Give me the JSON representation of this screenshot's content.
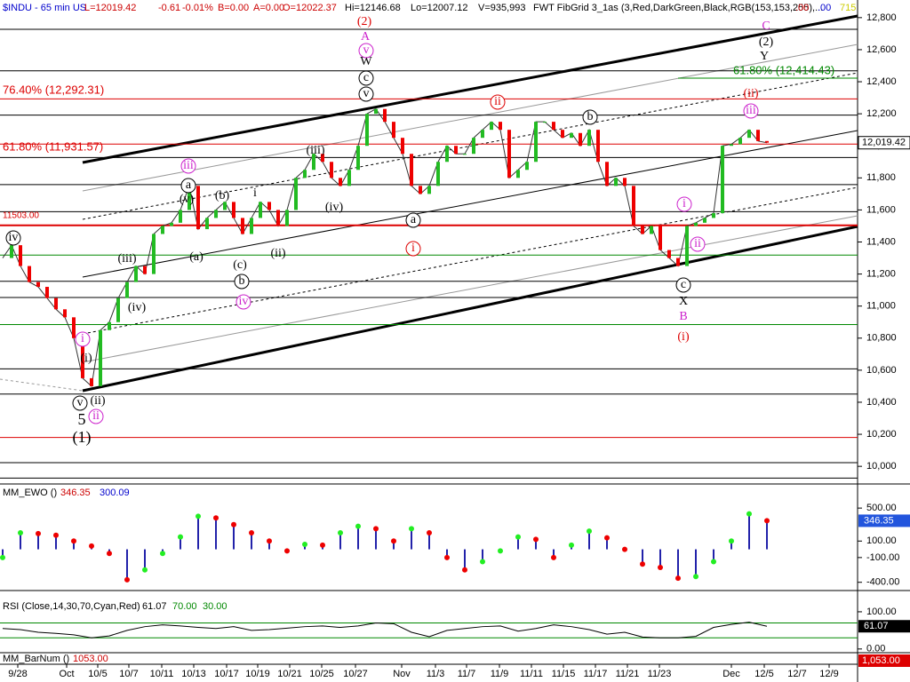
{
  "chart_data": {
    "type": "line",
    "header": {
      "symbol": "$INDU - 65 min US",
      "last": "L=12019.42",
      "change": "-0.61",
      "change_pct": "-0.01%",
      "bid": "B=0.00",
      "ask": "A=0.00",
      "open": "O=12022.37",
      "high": "Hi=12146.68",
      "low": "Lo=12007.12",
      "volume": "V=935,993",
      "study": "FWT FibGrid 3_1as (3,Red,DarkGreen,Black,RGB(153,153,255),...",
      "extra1": ".00",
      "extra2": ".00",
      "extra3": "715"
    },
    "closes": [
      11300,
      11380,
      11250,
      11150,
      11120,
      11050,
      10980,
      10930,
      10800,
      10550,
      10500,
      10850,
      10900,
      11050,
      11150,
      11250,
      11200,
      11450,
      11500,
      11520,
      11600,
      11750,
      11480,
      11550,
      11600,
      11650,
      11550,
      11450,
      11550,
      11650,
      11600,
      11500,
      11600,
      11800,
      11850,
      11950,
      11900,
      11800,
      11750,
      11850,
      12000,
      12200,
      12230,
      12150,
      12050,
      11950,
      11750,
      11700,
      11750,
      11900,
      12000,
      11950,
      11950,
      12050,
      12100,
      12150,
      12100,
      11800,
      11850,
      11900,
      12150,
      12150,
      12100,
      12050,
      12080,
      12000,
      12100,
      11900,
      11750,
      11800,
      11750,
      11500,
      11450,
      11500,
      11350,
      11300,
      11250,
      11500,
      11520,
      11550,
      11580,
      12000,
      12010,
      12050,
      12100,
      12030,
      12019.42
    ],
    "up_color": "#22bb22",
    "down_color": "#ee0000",
    "ylim": [
      9890,
      12910
    ],
    "yticks": [
      {
        "value": 12800,
        "label": "12,800"
      },
      {
        "value": 12600,
        "label": "12,600"
      },
      {
        "value": 12400,
        "label": "12,400"
      },
      {
        "value": 12200,
        "label": "12,200"
      },
      {
        "value": 12000,
        "label": "12,000"
      },
      {
        "value": 11800,
        "label": "11,800"
      },
      {
        "value": 11600,
        "label": "11,600"
      },
      {
        "value": 11400,
        "label": "11,400"
      },
      {
        "value": 11200,
        "label": "11,200"
      },
      {
        "value": 11000,
        "label": "11,000"
      },
      {
        "value": 10800,
        "label": "10,800"
      },
      {
        "value": 10600,
        "label": "10,600"
      },
      {
        "value": 10400,
        "label": "10,400"
      },
      {
        "value": 10200,
        "label": "10,200"
      },
      {
        "value": 10000,
        "label": "10,000"
      }
    ],
    "last_price": {
      "value": 12019.42,
      "label": "12,019.42"
    },
    "fib_levels": [
      {
        "value": 12727,
        "color": "#000000"
      },
      {
        "value": 12468,
        "color": "#000000"
      },
      {
        "value": 12293,
        "color": "#dd0000"
      },
      {
        "value": 12192,
        "color": "#000000"
      },
      {
        "value": 12011,
        "color": "#dd0000"
      },
      {
        "value": 11927,
        "color": "#000000"
      },
      {
        "value": 11758,
        "color": "#000000"
      },
      {
        "value": 11589,
        "color": "#000000"
      },
      {
        "value": 11504,
        "color": "#dd0000"
      },
      {
        "value": 11318,
        "color": "#008800"
      },
      {
        "value": 11155,
        "color": "#000000"
      },
      {
        "value": 11054,
        "color": "#000000"
      },
      {
        "value": 10885,
        "color": "#008800"
      },
      {
        "value": 10608,
        "color": "#000000"
      },
      {
        "value": 10451,
        "color": "#000000"
      },
      {
        "value": 10180,
        "color": "#dd0000"
      },
      {
        "value": 10023,
        "color": "#000000"
      },
      {
        "value": 9927,
        "color": "#000000"
      }
    ],
    "fib_labels": [
      {
        "text": "76.40% (12,292.31)",
        "color": "#dd0000"
      },
      {
        "text": "61.80% (11,931.57)",
        "color": "#dd0000"
      },
      {
        "text": "11503.00",
        "color": "#dd0000"
      },
      {
        "text": "61.80% (12,414.43)",
        "color": "#008800"
      }
    ],
    "waves": [
      {
        "text": "(2)",
        "color": "#dd0000"
      },
      {
        "text": "A",
        "color": "#cc22cc"
      },
      {
        "text": "v",
        "color": "#cc22cc"
      },
      {
        "text": "W",
        "color": "#000000"
      },
      {
        "text": "c",
        "color": "#000000"
      },
      {
        "text": "v",
        "color": "#000000"
      },
      {
        "text": "ii",
        "color": "#dd0000"
      },
      {
        "text": "b",
        "color": "#000000"
      },
      {
        "text": "(ii)",
        "color": "#dd0000"
      },
      {
        "text": "iii",
        "color": "#cc22cc"
      },
      {
        "text": "C",
        "color": "#cc22cc"
      },
      {
        "text": "(2)",
        "color": "#000000"
      },
      {
        "text": "Y",
        "color": "#000000"
      },
      {
        "text": "(iii)",
        "color": "#000000"
      },
      {
        "text": "iii",
        "color": "#cc22cc"
      },
      {
        "text": "a",
        "color": "#000000"
      },
      {
        "text": "(v)",
        "color": "#000000"
      },
      {
        "text": "(b)",
        "color": "#000000"
      },
      {
        "text": "i",
        "color": "#000000"
      },
      {
        "text": "(iv)",
        "color": "#000000"
      },
      {
        "text": "a",
        "color": "#000000"
      },
      {
        "text": "i",
        "color": "#dd0000"
      },
      {
        "text": "(iii)",
        "color": "#000000"
      },
      {
        "text": "(a)",
        "color": "#000000"
      },
      {
        "text": "(c)",
        "color": "#000000"
      },
      {
        "text": "(ii)",
        "color": "#000000"
      },
      {
        "text": "b",
        "color": "#000000"
      },
      {
        "text": "iv",
        "color": "#cc22cc"
      },
      {
        "text": "(iv)",
        "color": "#000000"
      },
      {
        "text": "iv",
        "color": "#000000"
      },
      {
        "text": "i",
        "color": "#cc22cc"
      },
      {
        "text": "ii",
        "color": "#cc22cc"
      },
      {
        "text": "c",
        "color": "#000000"
      },
      {
        "text": "X",
        "color": "#000000"
      },
      {
        "text": "B",
        "color": "#cc22cc"
      },
      {
        "text": "(i)",
        "color": "#dd0000"
      },
      {
        "text": "i",
        "color": "#cc22cc"
      },
      {
        "text": "(i)",
        "color": "#000000"
      },
      {
        "text": "v",
        "color": "#000000"
      },
      {
        "text": "(ii)",
        "color": "#000000"
      },
      {
        "text": "ii",
        "color": "#cc22cc"
      },
      {
        "text": "5",
        "color": "#000000"
      },
      {
        "text": "(1)",
        "color": "#000000"
      }
    ],
    "x_labels": [
      "9/28",
      "Oct",
      "10/5",
      "10/7",
      "10/11",
      "10/13",
      "10/17",
      "10/19",
      "10/21",
      "10/25",
      "10/27",
      "Nov",
      "11/3",
      "11/7",
      "11/9",
      "11/11",
      "11/15",
      "11/17",
      "11/21",
      "11/23",
      "Dec",
      "12/5",
      "12/7",
      "12/9"
    ],
    "ewo": {
      "title": "MM_EWO ()",
      "value1": "346.35",
      "value2": "300.09",
      "hist_color": "#2222aa",
      "values": [
        -100,
        200,
        190,
        170,
        100,
        40,
        -50,
        -370,
        -250,
        -50,
        150,
        400,
        380,
        300,
        200,
        100,
        -20,
        60,
        50,
        200,
        280,
        250,
        100,
        250,
        200,
        -100,
        -250,
        -150,
        -20,
        150,
        120,
        -100,
        50,
        220,
        140,
        0,
        -180,
        -220,
        -350,
        -330,
        -150,
        100,
        430,
        346.35
      ],
      "ylim": [
        -500,
        760
      ],
      "yticks": [
        {
          "value": 500,
          "label": "500.00"
        },
        {
          "value": 100,
          "label": "100.00"
        },
        {
          "value": -100,
          "label": "-100.00"
        },
        {
          "value": -400,
          "label": "-400.00"
        }
      ],
      "last": {
        "value": 346.35,
        "label": "346.35"
      }
    },
    "rsi": {
      "title": "RSI (Close,14,30,70,Cyan,Red)",
      "value": "61.07",
      "upper": {
        "value": 70,
        "label": "70.00"
      },
      "lower": {
        "value": 30,
        "label": "30.00"
      },
      "values": [
        55,
        52,
        45,
        42,
        38,
        30,
        35,
        50,
        60,
        65,
        62,
        58,
        55,
        60,
        50,
        52,
        56,
        60,
        62,
        58,
        62,
        70,
        68,
        45,
        33,
        50,
        55,
        60,
        62,
        48,
        55,
        65,
        60,
        52,
        40,
        45,
        32,
        30,
        30,
        34,
        58,
        66,
        72,
        61.07
      ],
      "ylim": [
        -10,
        150
      ],
      "yticks": [
        {
          "value": 100,
          "label": "100.00"
        },
        {
          "value": 0,
          "label": "0.00"
        }
      ],
      "last": {
        "value": 61.07,
        "label": "61.07"
      }
    },
    "barnum": {
      "title": "MM_BarNum ()",
      "value": "1053.00",
      "last": "1,053.00"
    }
  }
}
